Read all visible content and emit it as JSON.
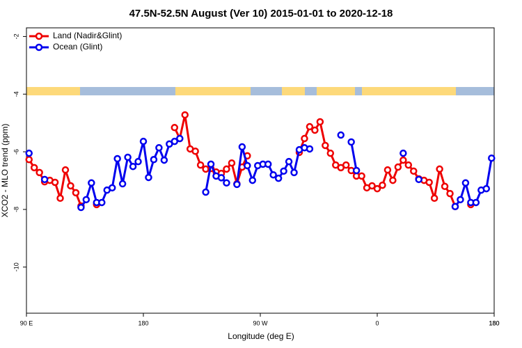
{
  "chart_data": {
    "type": "line",
    "title": "47.5N-52.5N August (Ver 10)   2015-01-01 to 2020-12-18",
    "x_label": "Longitude (deg E)",
    "y_label": "XCO2 - MLO trend (ppm)",
    "x": [
      92,
      96,
      100,
      104,
      108,
      112,
      116,
      120,
      124,
      128,
      132,
      136,
      140,
      144,
      148,
      152,
      156,
      160,
      164,
      168,
      172,
      176,
      180,
      184,
      188,
      192,
      196,
      200,
      204,
      208,
      212,
      216,
      220,
      224,
      228,
      232,
      236,
      240,
      244,
      248,
      252,
      256,
      260,
      264,
      268,
      272,
      276,
      280,
      284,
      288,
      292,
      296,
      300,
      304,
      308,
      312,
      316,
      320,
      324,
      328,
      332,
      336,
      340,
      344,
      348,
      352,
      356,
      360,
      364,
      368,
      372,
      376,
      380,
      384,
      388,
      392,
      396,
      400,
      404,
      408,
      412,
      416,
      420,
      424,
      428,
      432,
      436,
      440,
      444,
      448
    ],
    "series": [
      {
        "name": "Land (Nadir&Glint)",
        "color": "#ee0000",
        "values": [
          -6.27,
          -6.55,
          -6.72,
          -7.04,
          -6.99,
          -7.06,
          -7.61,
          -6.63,
          -7.18,
          -7.42,
          -7.88,
          null,
          null,
          -7.83,
          null,
          null,
          null,
          null,
          null,
          null,
          null,
          null,
          null,
          null,
          null,
          null,
          null,
          null,
          -5.16,
          -5.54,
          -4.72,
          -5.9,
          -5.98,
          -6.46,
          -6.6,
          -6.58,
          -6.7,
          -6.75,
          -6.6,
          -6.39,
          -7.11,
          -6.53,
          -6.14,
          null,
          null,
          null,
          null,
          null,
          null,
          null,
          null,
          null,
          -6.02,
          -5.54,
          -5.13,
          -5.25,
          -4.96,
          -5.78,
          -6.05,
          -6.46,
          -6.55,
          -6.46,
          -6.65,
          -6.84,
          -6.84,
          -7.25,
          -7.18,
          -7.28,
          -7.16,
          -6.63,
          -6.99,
          -6.53,
          -6.29,
          -6.46,
          -6.67,
          -6.94,
          -6.99,
          -7.06,
          -7.61,
          -6.6,
          -7.2,
          -7.45,
          -7.9,
          null,
          null,
          -7.83,
          null,
          null,
          null,
          null
        ]
      },
      {
        "name": "Ocean (Glint)",
        "color": "#0000ee",
        "values": [
          -6.05,
          null,
          null,
          -6.96,
          null,
          null,
          null,
          null,
          null,
          null,
          -7.93,
          -7.66,
          -7.08,
          -7.76,
          -7.76,
          -7.33,
          -7.25,
          -6.24,
          -7.11,
          -6.19,
          -6.51,
          -6.34,
          -5.64,
          -6.89,
          -6.27,
          -5.86,
          -6.29,
          -5.73,
          -5.64,
          -5.54,
          null,
          null,
          null,
          null,
          -7.4,
          -6.43,
          -6.84,
          -6.9,
          -7.08,
          null,
          -7.13,
          -5.83,
          -6.48,
          -6.99,
          -6.48,
          -6.43,
          -6.43,
          -6.8,
          -6.92,
          -6.67,
          -6.34,
          -6.72,
          -5.93,
          -5.86,
          -5.9,
          null,
          null,
          null,
          null,
          null,
          -5.42,
          null,
          -5.66,
          -6.65,
          null,
          null,
          null,
          null,
          null,
          null,
          null,
          null,
          -6.05,
          null,
          null,
          -6.96,
          null,
          null,
          null,
          null,
          null,
          null,
          -7.9,
          -7.66,
          -7.08,
          -7.76,
          -7.76,
          -7.33,
          -7.28,
          -6.22
        ]
      }
    ],
    "xlim": [
      90,
      450
    ],
    "xticks": [
      {
        "value": 90,
        "label": "90 E"
      },
      180,
      {
        "value": 270,
        "label": "90 W"
      },
      {
        "value": 360,
        "label": "0"
      },
      {
        "value": 450,
        "label": "180"
      },
      {
        "value": 450,
        "label": "180"
      }
    ],
    "ylim": [
      -11.6,
      -1.7
    ],
    "yticks": [
      -2,
      -4,
      -6,
      -8,
      -10
    ],
    "legend": "top-left"
  }
}
